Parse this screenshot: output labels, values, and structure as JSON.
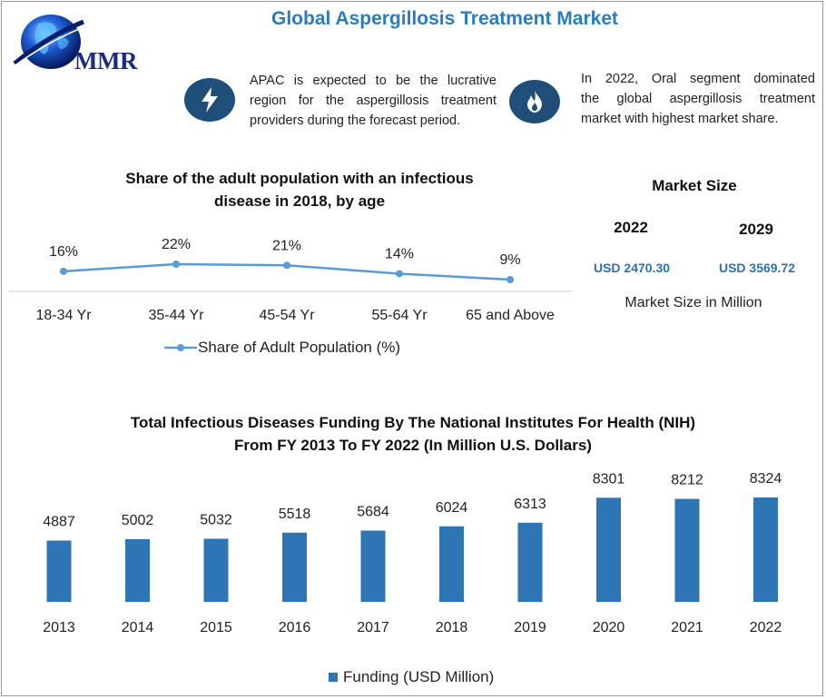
{
  "header": {
    "title": "Global Aspergillosis Treatment Market",
    "logo_text": "MMR"
  },
  "notes": [
    {
      "icon": "lightning-bolt-icon",
      "lines": [
        "APAC is expected to be the lucrative",
        "region for the aspergillosis treatment",
        "providers during the forecast period."
      ]
    },
    {
      "icon": "flame-icon",
      "lines": [
        "In 2022, Oral segment dominated",
        "the global aspergillosis treatment",
        "market with highest market share."
      ]
    }
  ],
  "market_size": {
    "title": "Market Size",
    "years": [
      "2022",
      "2029"
    ],
    "values": [
      "USD 2470.30",
      "USD 3569.72"
    ],
    "caption": "Market Size in Million"
  },
  "colors": {
    "accent": "#2b7bbf",
    "line": "#5b9bd5",
    "bar": "#2e75b6",
    "badge": "#1f4e79"
  },
  "chart_data": [
    {
      "type": "line",
      "title": "Share of the adult population with an infectious disease in 2018, by age",
      "title_lines": [
        "Share of the adult population with an infectious",
        "disease in 2018, by age"
      ],
      "categories": [
        "18-34 Yr",
        "35-44 Yr",
        "45-54 Yr",
        "55-64 Yr",
        "65 and Above"
      ],
      "series": [
        {
          "name": "Share of Adult Population (%)",
          "values": [
            16,
            22,
            21,
            14,
            9
          ],
          "labels": [
            "16%",
            "22%",
            "21%",
            "14%",
            "9%"
          ]
        }
      ],
      "legend": "bottom"
    },
    {
      "type": "bar",
      "title": "Total Infectious Diseases Funding By The National Institutes For Health (NIH) From FY 2013 To FY 2022 (In Million U.S. Dollars)",
      "title_lines": [
        "Total Infectious Diseases Funding By The National Institutes For Health (NIH)",
        "From FY 2013 To FY 2022 (In Million U.S. Dollars)"
      ],
      "categories": [
        "2013",
        "2014",
        "2015",
        "2016",
        "2017",
        "2018",
        "2019",
        "2020",
        "2021",
        "2022"
      ],
      "series": [
        {
          "name": "Funding (USD Million)",
          "values": [
            4887,
            5002,
            5032,
            5518,
            5684,
            6024,
            6313,
            8301,
            8212,
            8324
          ]
        }
      ],
      "legend": "bottom"
    }
  ]
}
